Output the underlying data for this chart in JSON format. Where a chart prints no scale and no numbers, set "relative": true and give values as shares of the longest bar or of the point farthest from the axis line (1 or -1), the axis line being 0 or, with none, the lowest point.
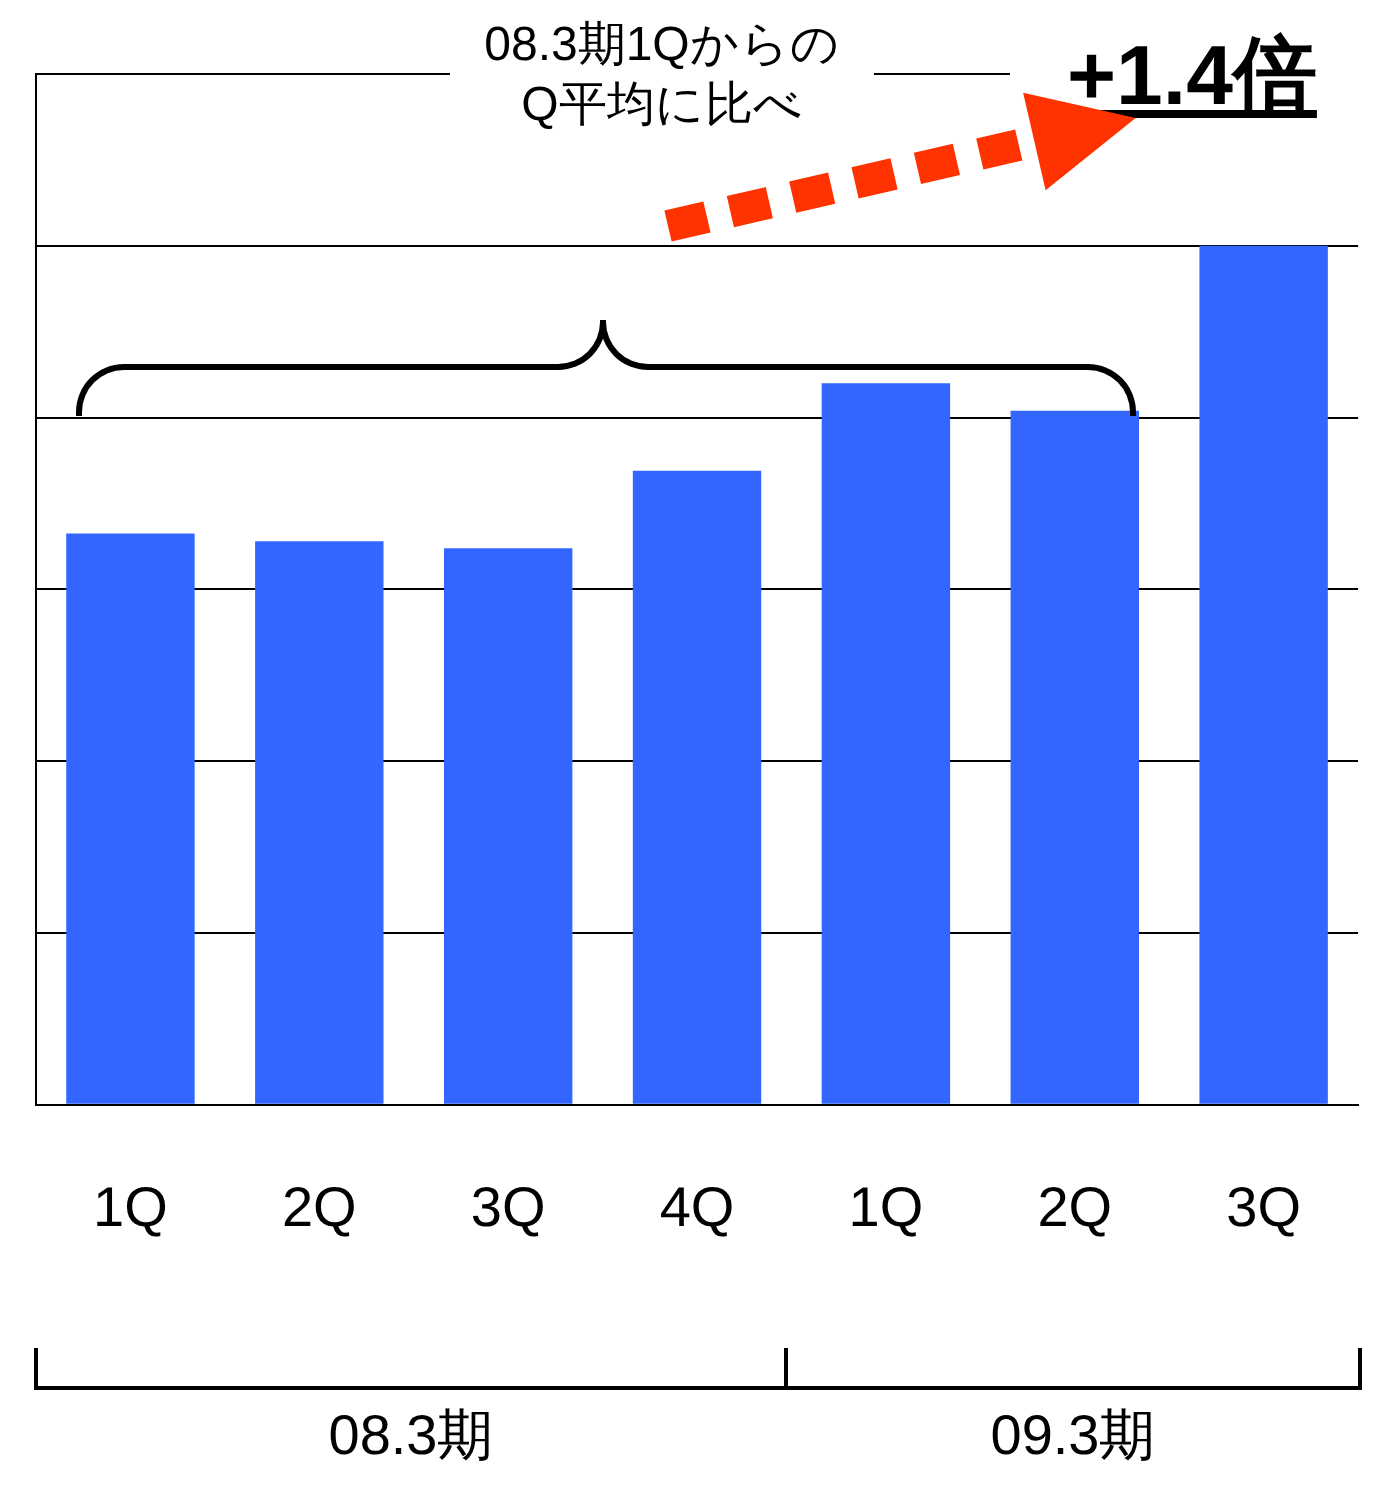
{
  "chart_data": {
    "type": "bar",
    "relative": true,
    "categories": [
      "1Q",
      "2Q",
      "3Q",
      "4Q",
      "1Q",
      "2Q",
      "3Q"
    ],
    "values": [
      0.665,
      0.656,
      0.648,
      0.738,
      0.84,
      0.808,
      1
    ],
    "color": "#3366ff",
    "grid": "y",
    "legend": false,
    "annotations": [
      "08.3期1Qからの Q平均に比べ",
      "+1.4倍",
      "08.3期",
      "09.3期"
    ]
  }
}
